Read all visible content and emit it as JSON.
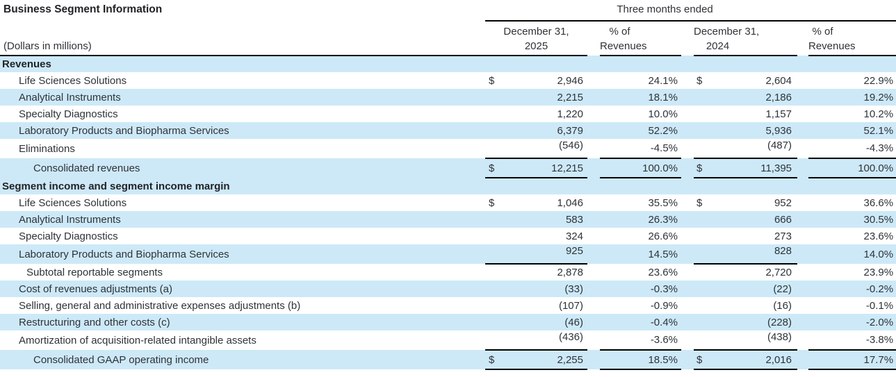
{
  "title": "Business Segment Information",
  "units_note": "(Dollars in millions)",
  "colors": {
    "row_stripe_blue": "#cde9f8",
    "rule_black": "#000000",
    "body_text": "#2f3237",
    "heading_text": "#232327",
    "background": "#ffffff"
  },
  "header": {
    "period_label": "Three months ended",
    "columns": [
      {
        "line1": "December 31,",
        "line2": "2025"
      },
      {
        "line1": "% of",
        "line2": "Revenues"
      },
      {
        "line1": "December 31,",
        "line2": "2024"
      },
      {
        "line1": "% of",
        "line2": "Revenues"
      }
    ]
  },
  "rows": [
    {
      "label": "Revenues",
      "style": "section",
      "bg": "blue",
      "d1": "",
      "v1": "",
      "p1": "",
      "d2": "",
      "v2": "",
      "p2": ""
    },
    {
      "label": "Life Sciences Solutions",
      "style": "item",
      "bg": "white",
      "d1": "$",
      "v1": "2,946",
      "p1": "24.1%",
      "d2": "$",
      "v2": "2,604",
      "p2": "22.9%"
    },
    {
      "label": "Analytical Instruments",
      "style": "item",
      "bg": "blue",
      "d1": "",
      "v1": "2,215",
      "p1": "18.1%",
      "d2": "",
      "v2": "2,186",
      "p2": "19.2%"
    },
    {
      "label": "Specialty Diagnostics",
      "style": "item",
      "bg": "white",
      "d1": "",
      "v1": "1,220",
      "p1": "10.0%",
      "d2": "",
      "v2": "1,157",
      "p2": "10.2%"
    },
    {
      "label": "Laboratory Products and Biopharma Services",
      "style": "item",
      "bg": "blue",
      "d1": "",
      "v1": "6,379",
      "p1": "52.2%",
      "d2": "",
      "v2": "5,936",
      "p2": "52.1%"
    },
    {
      "label": "Eliminations",
      "style": "item",
      "bg": "white",
      "d1": "",
      "v1": "(546)",
      "p1": "-4.5%",
      "d2": "",
      "v2": "(487)",
      "p2": "-4.3%",
      "raised": true
    },
    {
      "label": "Consolidated revenues",
      "style": "total",
      "bg": "blue",
      "d1": "$",
      "v1": "12,215",
      "p1": "100.0%",
      "d2": "$",
      "v2": "11,395",
      "p2": "100.0%",
      "rule_top": "all",
      "rule_bottom": true
    },
    {
      "label": "Segment income and segment income margin",
      "style": "section",
      "bg": "blue",
      "d1": "",
      "v1": "",
      "p1": "",
      "d2": "",
      "v2": "",
      "p2": ""
    },
    {
      "label": "Life Sciences Solutions",
      "style": "item",
      "bg": "white",
      "d1": "$",
      "v1": "1,046",
      "p1": "35.5%",
      "d2": "$",
      "v2": "952",
      "p2": "36.6%"
    },
    {
      "label": "Analytical Instruments",
      "style": "item",
      "bg": "blue",
      "d1": "",
      "v1": "583",
      "p1": "26.3%",
      "d2": "",
      "v2": "666",
      "p2": "30.5%"
    },
    {
      "label": "Specialty Diagnostics",
      "style": "item",
      "bg": "white",
      "d1": "",
      "v1": "324",
      "p1": "26.6%",
      "d2": "",
      "v2": "273",
      "p2": "23.6%"
    },
    {
      "label": "Laboratory Products and Biopharma Services",
      "style": "item",
      "bg": "blue",
      "d1": "",
      "v1": "925",
      "p1": "14.5%",
      "d2": "",
      "v2": "828",
      "p2": "14.0%",
      "raised": true
    },
    {
      "label": "Subtotal reportable segments",
      "style": "subtotal",
      "bg": "white",
      "d1": "",
      "v1": "2,878",
      "p1": "23.6%",
      "d2": "",
      "v2": "2,720",
      "p2": "23.9%",
      "rule_top": "money"
    },
    {
      "label": "Cost of revenues adjustments (a)",
      "style": "item",
      "bg": "blue",
      "d1": "",
      "v1": "(33)",
      "p1": "-0.3%",
      "d2": "",
      "v2": "(22)",
      "p2": "-0.2%"
    },
    {
      "label": "Selling, general and administrative expenses adjustments (b)",
      "style": "item",
      "bg": "white",
      "d1": "",
      "v1": "(107)",
      "p1": "-0.9%",
      "d2": "",
      "v2": "(16)",
      "p2": "-0.1%"
    },
    {
      "label": "Restructuring and other costs (c)",
      "style": "item",
      "bg": "blue",
      "d1": "",
      "v1": "(46)",
      "p1": "-0.4%",
      "d2": "",
      "v2": "(228)",
      "p2": "-2.0%"
    },
    {
      "label": "Amortization of acquisition-related intangible assets",
      "style": "item",
      "bg": "white",
      "d1": "",
      "v1": "(436)",
      "p1": "-3.6%",
      "d2": "",
      "v2": "(438)",
      "p2": "-3.8%",
      "raised": true
    },
    {
      "label": "Consolidated GAAP operating income",
      "style": "total",
      "bg": "blue",
      "d1": "$",
      "v1": "2,255",
      "p1": "18.5%",
      "d2": "$",
      "v2": "2,016",
      "p2": "17.7%",
      "rule_top": "all",
      "rule_bottom": true
    }
  ]
}
